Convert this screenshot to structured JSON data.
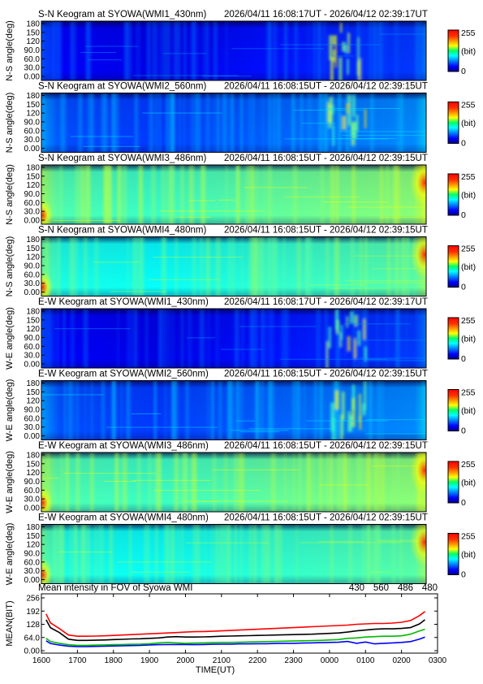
{
  "chart_data": [
    {
      "type": "heatmap",
      "title": "S-N Keogram at SYOWA(WMI1_430nm)",
      "time_range": "2026/04/11 16:08:17UT - 2026/04/12 02:39:17UT",
      "ylabel": "N-S angle(deg)",
      "yticks": [
        "180",
        "150",
        "120",
        "90.0",
        "60.0",
        "30.0",
        "0.00"
      ],
      "ylim": [
        0,
        180
      ],
      "colorbar": {
        "max_label": "255",
        "unit_label": "(bit)",
        "min_label": "0",
        "range": [
          0,
          255
        ]
      },
      "level": 0.12
    },
    {
      "type": "heatmap",
      "title": "S-N Keogram at SYOWA(WMI2_560nm)",
      "time_range": "2026/04/11 16:08:15UT - 2026/04/12 02:39:15UT",
      "ylabel": "N-S angle(deg)",
      "yticks": [
        "180",
        "150",
        "120",
        "90.0",
        "60.0",
        "30.0",
        "0.00"
      ],
      "ylim": [
        0,
        180
      ],
      "colorbar": {
        "max_label": "255",
        "unit_label": "(bit)",
        "min_label": "0",
        "range": [
          0,
          255
        ]
      },
      "level": 0.2
    },
    {
      "type": "heatmap",
      "title": "S-N Keogram at SYOWA(WMI3_486nm)",
      "time_range": "2026/04/11 16:08:15UT - 2026/04/12 02:39:15UT",
      "ylabel": "N-S angle(deg)",
      "yticks": [
        "180",
        "150",
        "120",
        "90.0",
        "60.0",
        "30.0",
        "0.00"
      ],
      "ylim": [
        0,
        180
      ],
      "colorbar": {
        "max_label": "255",
        "unit_label": "(bit)",
        "min_label": "0",
        "range": [
          0,
          255
        ]
      },
      "level": 0.45
    },
    {
      "type": "heatmap",
      "title": "S-N Keogram at SYOWA(WMI4_480nm)",
      "time_range": "2026/04/11 16:08:15UT - 2026/04/12 02:39:15UT",
      "ylabel": "N-S angle(deg)",
      "yticks": [
        "180",
        "150",
        "120",
        "90.0",
        "60.0",
        "30.0",
        "0.00"
      ],
      "ylim": [
        0,
        180
      ],
      "colorbar": {
        "max_label": "255",
        "unit_label": "(bit)",
        "min_label": "0",
        "range": [
          0,
          255
        ]
      },
      "level": 0.4
    },
    {
      "type": "heatmap",
      "title": "E-W Keogram at SYOWA(WMI1_430nm)",
      "time_range": "2026/04/11 16:08:17UT - 2026/04/12 02:39:17UT",
      "ylabel": "W-E angle(deg)",
      "yticks": [
        "180",
        "150",
        "120",
        "90.0",
        "60.0",
        "30.0",
        "0.00"
      ],
      "ylim": [
        0,
        180
      ],
      "colorbar": {
        "max_label": "255",
        "unit_label": "(bit)",
        "min_label": "0",
        "range": [
          0,
          255
        ]
      },
      "level": 0.12
    },
    {
      "type": "heatmap",
      "title": "E-W Keogram at SYOWA(WMI2_560nm)",
      "time_range": "2026/04/11 16:08:15UT - 2026/04/12 02:39:15UT",
      "ylabel": "W-E angle(deg)",
      "yticks": [
        "180",
        "150",
        "120",
        "90.0",
        "60.0",
        "30.0",
        "0.00"
      ],
      "ylim": [
        0,
        180
      ],
      "colorbar": {
        "max_label": "255",
        "unit_label": "(bit)",
        "min_label": "0",
        "range": [
          0,
          255
        ]
      },
      "level": 0.2
    },
    {
      "type": "heatmap",
      "title": "E-W Keogram at SYOWA(WMI3_486nm)",
      "time_range": "2026/04/11 16:08:15UT - 2026/04/12 02:39:15UT",
      "ylabel": "W-E angle(deg)",
      "yticks": [
        "180",
        "150",
        "120",
        "90.0",
        "60.0",
        "30.0",
        "0.00"
      ],
      "ylim": [
        0,
        180
      ],
      "colorbar": {
        "max_label": "255",
        "unit_label": "(bit)",
        "min_label": "0",
        "range": [
          0,
          255
        ]
      },
      "level": 0.45
    },
    {
      "type": "heatmap",
      "title": "E-W Keogram at SYOWA(WMI4_480nm)",
      "time_range": "2026/04/11 16:08:15UT - 2026/04/12 02:39:15UT",
      "ylabel": "W-E angle(deg)",
      "yticks": [
        "180",
        "150",
        "120",
        "90.0",
        "60.0",
        "30.0",
        "0.00"
      ],
      "ylim": [
        0,
        180
      ],
      "colorbar": {
        "max_label": "255",
        "unit_label": "(bit)",
        "min_label": "0",
        "range": [
          0,
          255
        ]
      },
      "level": 0.4
    },
    {
      "type": "line",
      "title": "Mean intensity in FOV of Syowa WMI",
      "xlabel": "TIME(UT)",
      "ylabel": "MEAN(BIT)",
      "ylim": [
        0,
        256
      ],
      "yticks": [
        "256",
        "192",
        "128",
        "64.0",
        "0.00"
      ],
      "xticks": [
        "1600",
        "1700",
        "1800",
        "1900",
        "2000",
        "2100",
        "2200",
        "2300",
        "0000",
        "0100",
        "0200",
        "0300"
      ],
      "x": [
        0.13,
        0.25,
        0.5,
        0.75,
        1,
        1.25,
        1.5,
        1.75,
        2,
        2.25,
        2.5,
        2.75,
        3,
        3.25,
        3.5,
        3.75,
        4,
        4.25,
        4.5,
        4.75,
        5,
        5.25,
        5.5,
        5.75,
        6,
        6.25,
        6.5,
        6.75,
        7,
        7.25,
        7.5,
        7.75,
        8,
        8.25,
        8.5,
        8.75,
        9,
        9.25,
        9.5,
        9.75,
        10,
        10.25,
        10.5,
        10.65
      ],
      "series": [
        {
          "name": "430",
          "color": "#0000ff",
          "values": [
            48,
            35,
            27,
            22,
            20,
            20,
            21,
            22,
            23,
            24,
            25,
            26,
            28,
            29,
            30,
            30,
            30,
            29,
            30,
            31,
            32,
            32,
            33,
            33,
            34,
            34,
            35,
            36,
            36,
            37,
            38,
            39,
            40,
            41,
            45,
            36,
            42,
            33,
            36,
            38,
            40,
            44,
            56,
            66
          ]
        },
        {
          "name": "560",
          "color": "#00bb00",
          "values": [
            60,
            45,
            36,
            29,
            26,
            26,
            27,
            28,
            29,
            30,
            31,
            32,
            34,
            38,
            40,
            38,
            36,
            37,
            38,
            39,
            40,
            40,
            41,
            42,
            43,
            44,
            45,
            46,
            47,
            48,
            49,
            50,
            52,
            54,
            60,
            62,
            66,
            68,
            70,
            70,
            72,
            80,
            96,
            104
          ]
        },
        {
          "name": "486",
          "color": "#ff0000",
          "values": [
            178,
            135,
            107,
            76,
            70,
            70,
            71,
            72,
            74,
            76,
            78,
            80,
            82,
            84,
            86,
            88,
            90,
            92,
            93,
            94,
            96,
            98,
            100,
            102,
            104,
            106,
            108,
            110,
            112,
            114,
            116,
            118,
            120,
            122,
            124,
            128,
            130,
            132,
            132,
            134,
            138,
            146,
            170,
            190
          ]
        },
        {
          "name": "480",
          "color": "#000000",
          "values": [
            150,
            112,
            88,
            56,
            50,
            50,
            51,
            52,
            54,
            55,
            57,
            58,
            60,
            62,
            66,
            68,
            66,
            66,
            67,
            68,
            70,
            71,
            72,
            73,
            74,
            75,
            76,
            77,
            78,
            79,
            80,
            82,
            84,
            86,
            90,
            96,
            100,
            104,
            106,
            106,
            108,
            112,
            130,
            150
          ]
        }
      ]
    }
  ]
}
